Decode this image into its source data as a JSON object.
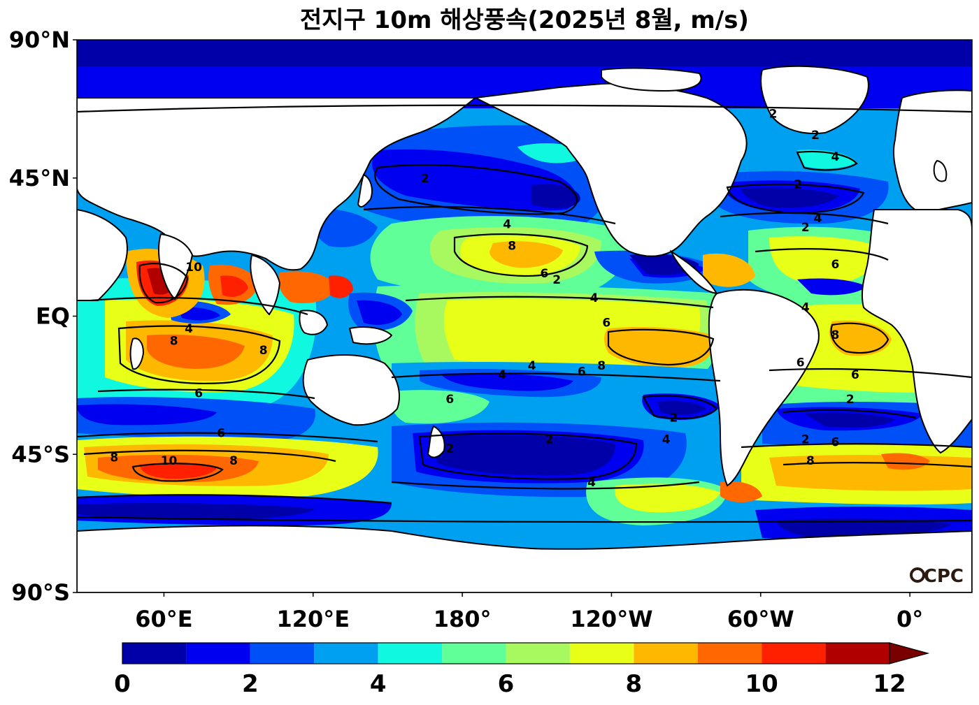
{
  "chart_data": {
    "type": "heatmap",
    "title": "전지구 10m 해상풍속(2025년 8월, m/s)",
    "y_ticks": [
      "90°N",
      "45°N",
      "EQ",
      "45°S",
      "90°S"
    ],
    "y_tick_values": [
      90,
      45,
      0,
      -45,
      -90
    ],
    "x_ticks": [
      "60°E",
      "120°E",
      "180°",
      "120°W",
      "60°W",
      "0°"
    ],
    "x_tick_values": [
      60,
      120,
      180,
      240,
      300,
      360
    ],
    "xlim": [
      25,
      385
    ],
    "ylim": [
      -90,
      90
    ],
    "colorbar": {
      "levels": [
        0,
        1,
        2,
        3,
        4,
        5,
        6,
        7,
        8,
        9,
        10,
        11,
        12
      ],
      "tick_labels": [
        "0",
        "2",
        "4",
        "6",
        "8",
        "10",
        "12"
      ],
      "tick_values": [
        0,
        2,
        4,
        6,
        8,
        10,
        12
      ],
      "colors": [
        "#0000a8",
        "#0000f0",
        "#0050f8",
        "#00a0f0",
        "#10f8e0",
        "#60ff98",
        "#a8f860",
        "#e8ff18",
        "#ffb800",
        "#ff6800",
        "#ff2000",
        "#b00000"
      ],
      "extend": "max"
    },
    "contour_levels": [
      2,
      4,
      6,
      8,
      10
    ],
    "contour_labels": [
      {
        "lon": 165,
        "lat": 45,
        "text": "2"
      },
      {
        "lon": 198,
        "lat": 30,
        "text": "4"
      },
      {
        "lon": 200,
        "lat": 23,
        "text": "8"
      },
      {
        "lon": 213,
        "lat": 14,
        "text": "6"
      },
      {
        "lon": 218,
        "lat": 12,
        "text": "2"
      },
      {
        "lon": 233,
        "lat": 6,
        "text": "4"
      },
      {
        "lon": 238,
        "lat": -2,
        "text": "6"
      },
      {
        "lon": 236,
        "lat": -16,
        "text": "8"
      },
      {
        "lon": 228,
        "lat": -18,
        "text": "6"
      },
      {
        "lon": 208,
        "lat": -16,
        "text": "4"
      },
      {
        "lon": 196,
        "lat": -19,
        "text": "4"
      },
      {
        "lon": 175,
        "lat": -27,
        "text": "6"
      },
      {
        "lon": 175,
        "lat": -43,
        "text": "2"
      },
      {
        "lon": 215,
        "lat": -40,
        "text": "2"
      },
      {
        "lon": 232,
        "lat": -54,
        "text": "4"
      },
      {
        "lon": 265,
        "lat": -33,
        "text": "2"
      },
      {
        "lon": 262,
        "lat": -40,
        "text": "4"
      },
      {
        "lon": 72,
        "lat": 16,
        "text": "10"
      },
      {
        "lon": 70,
        "lat": -4,
        "text": "4"
      },
      {
        "lon": 64,
        "lat": -8,
        "text": "8"
      },
      {
        "lon": 100,
        "lat": -11,
        "text": "8"
      },
      {
        "lon": 74,
        "lat": -25,
        "text": "6"
      },
      {
        "lon": 83,
        "lat": -38,
        "text": "6"
      },
      {
        "lon": 62,
        "lat": -47,
        "text": "10"
      },
      {
        "lon": 88,
        "lat": -47,
        "text": "8"
      },
      {
        "lon": 40,
        "lat": -46,
        "text": "8"
      },
      {
        "lon": 330,
        "lat": -6,
        "text": "8"
      },
      {
        "lon": 338,
        "lat": -19,
        "text": "6"
      },
      {
        "lon": 336,
        "lat": -27,
        "text": "2"
      },
      {
        "lon": 330,
        "lat": -41,
        "text": "6"
      },
      {
        "lon": 320,
        "lat": -47,
        "text": "8"
      },
      {
        "lon": 318,
        "lat": -40,
        "text": "2"
      },
      {
        "lon": 316,
        "lat": -15,
        "text": "6"
      },
      {
        "lon": 318,
        "lat": 3,
        "text": "4"
      },
      {
        "lon": 330,
        "lat": 17,
        "text": "6"
      },
      {
        "lon": 323,
        "lat": 32,
        "text": "4"
      },
      {
        "lon": 318,
        "lat": 29,
        "text": "2"
      },
      {
        "lon": 330,
        "lat": 52,
        "text": "4"
      },
      {
        "lon": 315,
        "lat": 43,
        "text": "2"
      },
      {
        "lon": 322,
        "lat": 59,
        "text": "2"
      },
      {
        "lon": 305,
        "lat": 66,
        "text": "2"
      }
    ],
    "logo": "CPC"
  }
}
